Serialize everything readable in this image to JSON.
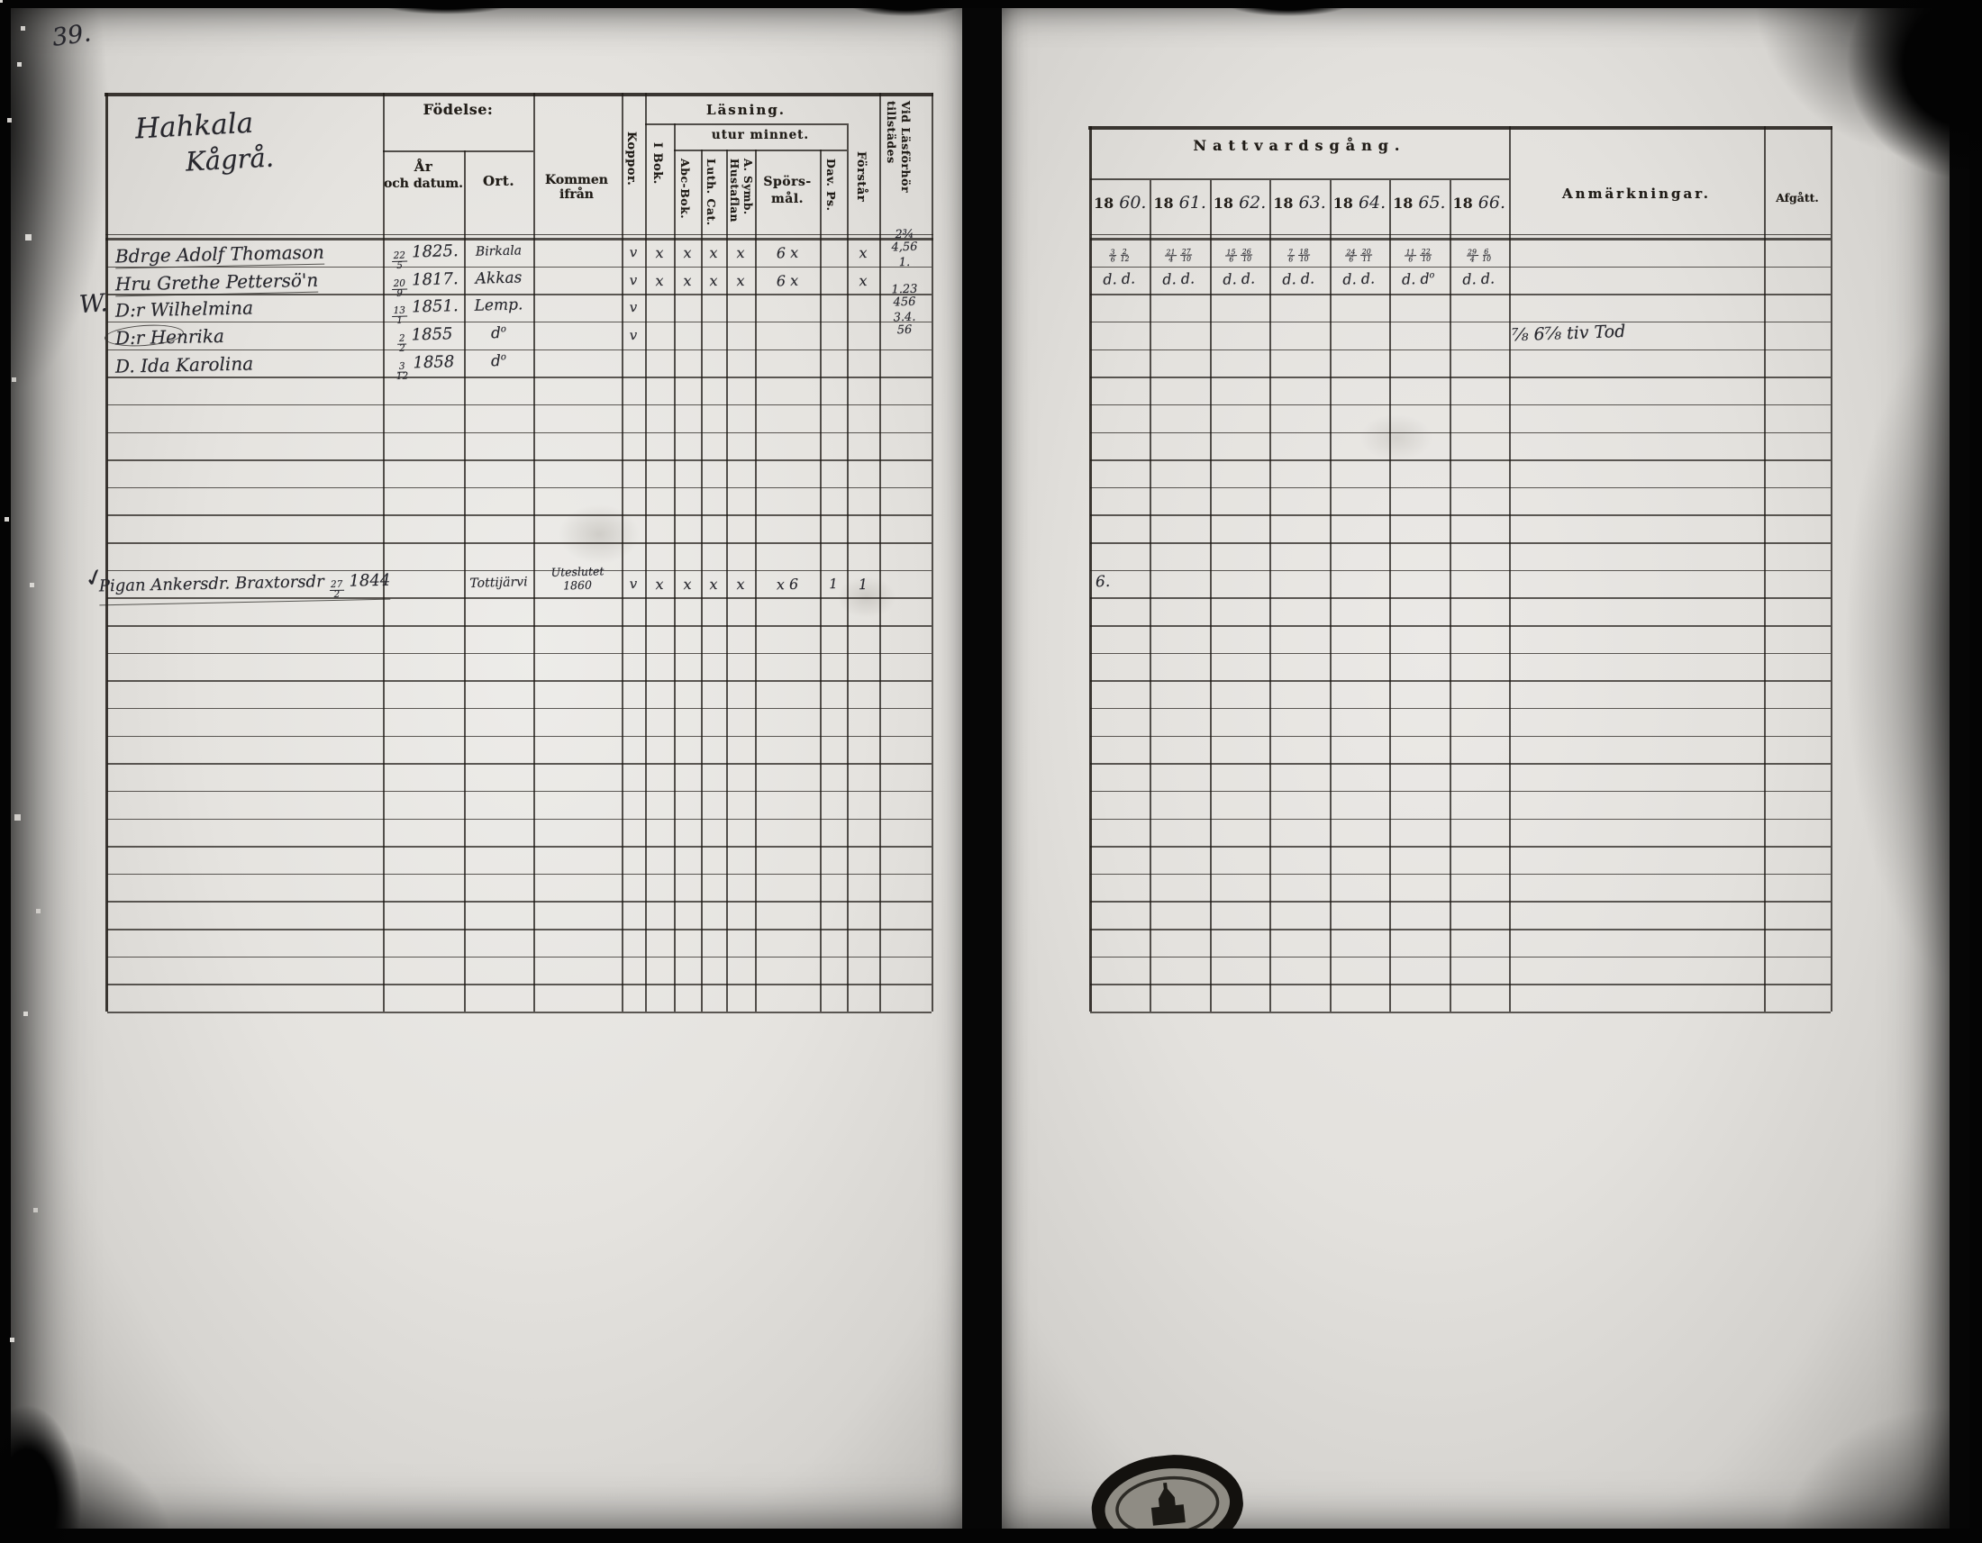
{
  "page_number": "39.",
  "colors": {
    "paper": "#e7e5e1",
    "ink_print": "#211d18",
    "ink_hand": "#27272d",
    "edge": "#060606"
  },
  "left_page": {
    "community_title": [
      "Hahkala",
      "Kågrå."
    ],
    "headers": {
      "fodelse": "Födelse:",
      "ar": "År",
      "och_datum": "och datum.",
      "ort": "Ort.",
      "kommen_ifran": "Kommen ifrån",
      "koppor": "Koppor.",
      "lasning": "Läsning.",
      "utur_minnet": "utur minnet.",
      "i_bok": "I Bok.",
      "abc_bok": "Abc-Bok.",
      "luth_cat": "Luth. Cat.",
      "hustaflan_1": "Hustaflan",
      "hustaflan_2": "A. Symb.",
      "spors_1": "Spörs-",
      "spors_2": "mål.",
      "dav_ps": "Dav. Ps.",
      "forstar": "Förstår",
      "vid_lasforhor_1": "Vid Läsförhör",
      "vid_lasforhor_2": "tillstädes"
    },
    "rows": [
      {
        "row": 0,
        "margin": "",
        "name": "Bdrge Adolf Thomason",
        "underline": true,
        "date": "22/5 1825.",
        "ort": "Birkala",
        "koppor": "v",
        "i_bok": "x",
        "abc_bok": "x",
        "luth_cat": "x",
        "hustaflan": "x",
        "sporsmal": "6 x",
        "dav_ps": "",
        "forstar": "x",
        "tillstades": [
          "2¾",
          "4,56"
        ]
      },
      {
        "row": 1,
        "margin": "",
        "name": "Hru Grethe Pettersö'n",
        "underline": true,
        "date": "20/9 1817.",
        "ort": "Akkas",
        "koppor": "v",
        "i_bok": "x",
        "abc_bok": "x",
        "luth_cat": "x",
        "hustaflan": "x",
        "sporsmal": "6 x",
        "dav_ps": "",
        "forstar": "x",
        "tillstades": [
          "1."
        ]
      },
      {
        "row": 2,
        "margin": "W.",
        "name": "D:r Wilhelmina",
        "underline": false,
        "date": "13/1 1851.",
        "ort": "Lemp.",
        "koppor": "v",
        "tillstades": [
          "1.23",
          "456"
        ]
      },
      {
        "row": 3,
        "margin": "oval",
        "name": "D:r Henrika",
        "underline": false,
        "date": "2/2 1855",
        "ort": "do",
        "koppor": "v",
        "tillstades": [
          "3.4.",
          "56"
        ]
      },
      {
        "row": 4,
        "margin": "",
        "name": "D. Ida Karolina",
        "underline": false,
        "date": "3/12 1858",
        "ort": "do"
      },
      {
        "row": 12,
        "margin": "check",
        "name": "Pigan Ankersdr. Braxtorsdr",
        "underline": true,
        "date": "27/2 1844",
        "ort": "Tottijärvi",
        "kommen": [
          "Uteslutet",
          "1860"
        ],
        "koppor": "v",
        "i_bok": "x",
        "abc_bok": "x",
        "luth_cat": "x",
        "hustaflan": "x",
        "sporsmal": "x 6",
        "dav_ps": "1",
        "forstar": "1"
      }
    ]
  },
  "right_page": {
    "headers": {
      "nattvardsgang": "Nattvardsgång.",
      "anmarkningar": "Anmärkningar.",
      "afgatt": "Afgått."
    },
    "years": [
      {
        "printed": "18",
        "written": "60."
      },
      {
        "printed": "18",
        "written": "61."
      },
      {
        "printed": "18",
        "written": "62."
      },
      {
        "printed": "18",
        "written": "63."
      },
      {
        "printed": "18",
        "written": "64."
      },
      {
        "printed": "18",
        "written": "65."
      },
      {
        "printed": "18",
        "written": "66."
      }
    ],
    "communion_rows": [
      {
        "row": 0,
        "values": [
          "3/6 2/12",
          "21/4 27/10",
          "15/6 26/10",
          "7/6 18/10",
          "24/6 20/11",
          "11/6 22/10",
          "29/4 6/10"
        ]
      },
      {
        "row": 1,
        "values": [
          "d. d.",
          "d. d.",
          "d. d.",
          "d. d.",
          "d. d.",
          "d. do",
          "d. d."
        ]
      }
    ],
    "margin_marks": [
      {
        "row": 12,
        "text": "6."
      }
    ],
    "remarks": [
      {
        "row": 3,
        "text": "⅞ 6⅞ tiv Tod"
      }
    ]
  },
  "stamp": {
    "description": "round parish seal with church silhouette (text illegible)"
  }
}
